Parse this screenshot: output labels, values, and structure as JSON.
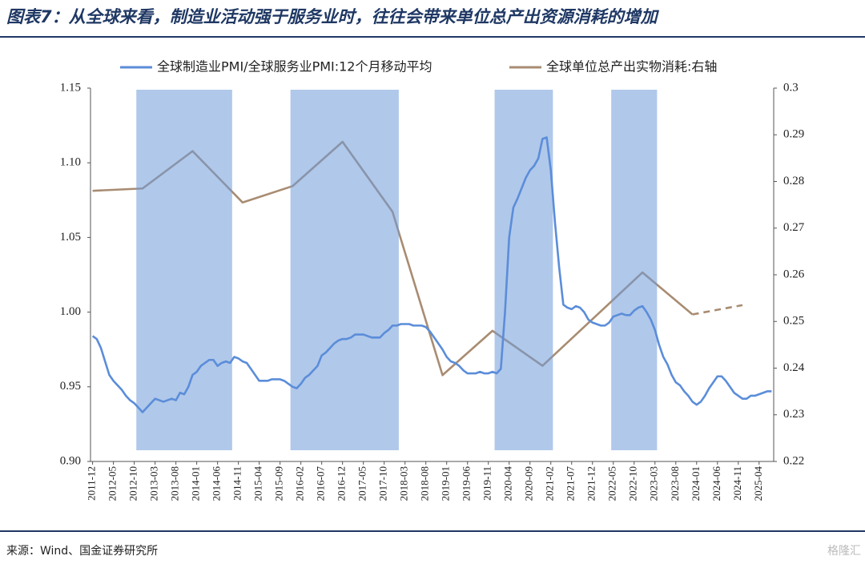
{
  "chart_data": {
    "type": "line",
    "title": "图表7：从全球来看，制造业活动强于服务业时，往往会带来单位总产出资源消耗的增加",
    "source": "来源：Wind、国金证券研究所",
    "watermark": "格隆汇",
    "categories": [
      "2011-12",
      null,
      null,
      null,
      null,
      "2012-05",
      null,
      null,
      null,
      null,
      "2012-10",
      null,
      null,
      null,
      null,
      "2013-03",
      null,
      null,
      null,
      null,
      "2013-08",
      null,
      null,
      null,
      null,
      "2014-01",
      null,
      null,
      null,
      null,
      "2014-06",
      null,
      null,
      null,
      null,
      "2014-11",
      null,
      null,
      null,
      null,
      "2015-04",
      null,
      null,
      null,
      null,
      "2015-09",
      null,
      null,
      null,
      null,
      "2016-02",
      null,
      null,
      null,
      null,
      "2016-07",
      null,
      null,
      null,
      null,
      "2016-12",
      null,
      null,
      null,
      null,
      "2017-05",
      null,
      null,
      null,
      null,
      "2017-10",
      null,
      null,
      null,
      null,
      "2018-03",
      null,
      null,
      null,
      null,
      "2018-08",
      null,
      null,
      null,
      null,
      "2019-01",
      null,
      null,
      null,
      null,
      "2019-06",
      null,
      null,
      null,
      null,
      "2019-11",
      null,
      null,
      null,
      null,
      "2020-04",
      null,
      null,
      null,
      null,
      "2020-09",
      null,
      null,
      null,
      null,
      "2021-02",
      null,
      null,
      null,
      null,
      "2021-07",
      null,
      null,
      null,
      null,
      "2021-12",
      null,
      null,
      null,
      null,
      "2022-05",
      null,
      null,
      null,
      null,
      "2022-10",
      null,
      null,
      null,
      null,
      "2023-03",
      null,
      null,
      null,
      null,
      "2023-08",
      null,
      null,
      null,
      null,
      "2024-01",
      null,
      null,
      null,
      null,
      "2024-06",
      null,
      null,
      null,
      null,
      "2024-11",
      null,
      null,
      null,
      null,
      "2025-04",
      null,
      null,
      null
    ],
    "series": [
      {
        "name": "全球制造业PMI/全球服务业PMI:12个月移动平均",
        "color": "#5b8dd9",
        "values": [
          0.984,
          0.982,
          0.976,
          0.967,
          0.958,
          0.954,
          0.951,
          0.948,
          0.944,
          0.941,
          0.939,
          0.936,
          0.933,
          0.936,
          0.939,
          0.942,
          0.941,
          0.94,
          0.941,
          0.942,
          0.941,
          0.946,
          0.945,
          0.95,
          0.958,
          0.96,
          0.964,
          0.966,
          0.968,
          0.968,
          0.964,
          0.966,
          0.967,
          0.966,
          0.97,
          0.969,
          0.967,
          0.966,
          0.962,
          0.958,
          0.954,
          0.954,
          0.954,
          0.955,
          0.955,
          0.955,
          0.954,
          0.952,
          0.95,
          0.949,
          0.952,
          0.956,
          0.958,
          0.961,
          0.964,
          0.971,
          0.973,
          0.976,
          0.979,
          0.981,
          0.982,
          0.982,
          0.983,
          0.985,
          0.985,
          0.985,
          0.984,
          0.983,
          0.983,
          0.983,
          0.986,
          0.988,
          0.991,
          0.991,
          0.992,
          0.992,
          0.992,
          0.991,
          0.991,
          0.991,
          0.99,
          0.987,
          0.983,
          0.979,
          0.975,
          0.97,
          0.967,
          0.966,
          0.964,
          0.961,
          0.959,
          0.959,
          0.959,
          0.96,
          0.959,
          0.959,
          0.96,
          0.959,
          0.962,
          1.0,
          1.05,
          1.07,
          1.076,
          1.083,
          1.09,
          1.095,
          1.098,
          1.103,
          1.116,
          1.117,
          1.095,
          1.06,
          1.03,
          1.005,
          1.003,
          1.002,
          1.004,
          1.003,
          1.0,
          0.995,
          0.993,
          0.992,
          0.991,
          0.991,
          0.993,
          0.997,
          0.998,
          0.999,
          0.998,
          0.998,
          1.001,
          1.003,
          1.004,
          1.0,
          0.995,
          0.988,
          0.978,
          0.97,
          0.965,
          0.958,
          0.953,
          0.951,
          0.947,
          0.944,
          0.94,
          0.938,
          0.94,
          0.944,
          0.949,
          0.953,
          0.957,
          0.957,
          0.954,
          0.95,
          0.946,
          0.944,
          0.942,
          0.942,
          0.944,
          0.944,
          0.945,
          0.946,
          0.947,
          0.947
        ]
      },
      {
        "name": "全球单位总产出实物消耗:右轴",
        "color": "#a88c72",
        "axis": "y2",
        "x": [
          "2011-12",
          "2012-12",
          "2013-12",
          "2014-12",
          "2015-12",
          "2016-12",
          "2017-12",
          "2018-12",
          "2019-12",
          "2020-12",
          "2021-12",
          "2022-12",
          "2023-12"
        ],
        "values": [
          0.278,
          0.2785,
          0.2865,
          0.2755,
          0.279,
          0.2885,
          0.2735,
          0.2385,
          0.248,
          0.2405,
          0.2505,
          0.2605,
          0.2515
        ]
      },
      {
        "color": "#a88c72",
        "axis": "y2",
        "dashed": true,
        "x": [
          "2023-12",
          "2024-12"
        ],
        "values": [
          0.2515,
          0.2535
        ]
      }
    ],
    "shaded_periods": [
      {
        "start": "2012-11",
        "end": "2014-09"
      },
      {
        "start": "2015-12",
        "end": "2018-01"
      },
      {
        "start": "2020-01",
        "end": "2021-02"
      },
      {
        "start": "2022-05",
        "end": "2023-03"
      }
    ],
    "shade_color": "#6f9ad9",
    "ylim": [
      0.9,
      1.15
    ],
    "yticks": [
      {
        "value": 0.9,
        "label": "0.90"
      },
      0.95,
      {
        "value": 1.0,
        "label": "1.00"
      },
      1.05,
      {
        "value": 1.1,
        "label": "1.10"
      },
      1.15
    ],
    "y2lim": [
      0.22,
      0.3
    ],
    "y2ticks": [
      0.22,
      0.23,
      0.24,
      0.25,
      0.26,
      0.27,
      0.28,
      0.29,
      0.3
    ]
  }
}
